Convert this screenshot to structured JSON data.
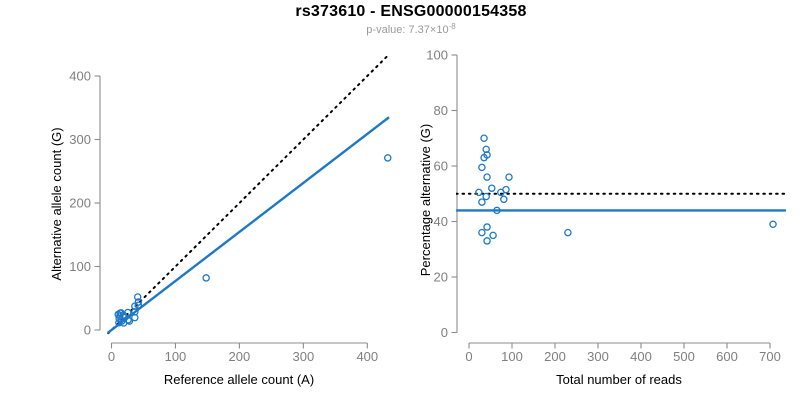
{
  "figure": {
    "title": "rs373610 - ENSG00000154358",
    "subtitle_prefix": "p-value: 7.37×10",
    "subtitle_exponent": "-8"
  },
  "colors": {
    "point_blue": "#1E78C8",
    "fit_blue": "#1E78C8",
    "dashed_black": "#000000",
    "axis_gray": "#8c8c8c",
    "tick_label_gray": "#7f7f7f",
    "subtitle_gray": "#9a9a9a"
  },
  "chart_data": [
    {
      "name": "allele-counts-scatter",
      "type": "scatter",
      "xlabel": "Reference allele count (A)",
      "ylabel": "Alternative allele count (G)",
      "xticks": [
        0,
        100,
        200,
        300,
        400
      ],
      "yticks": [
        0,
        100,
        200,
        300,
        400
      ],
      "xlim": [
        -18,
        450
      ],
      "ylim": [
        -18,
        450
      ],
      "grid": false,
      "points": [
        [
          10.5,
          24.5
        ],
        [
          13.5,
          26.5
        ],
        [
          15,
          27
        ],
        [
          13,
          22
        ],
        [
          12,
          18
        ],
        [
          18.5,
          23.5
        ],
        [
          41,
          52
        ],
        [
          25.5,
          27.5
        ],
        [
          11.5,
          11.5
        ],
        [
          20.5,
          19.5
        ],
        [
          36.5,
          37.5
        ],
        [
          42,
          44
        ],
        [
          16,
          14
        ],
        [
          42,
          39
        ],
        [
          36.5,
          28.5
        ],
        [
          26,
          16
        ],
        [
          19,
          11
        ],
        [
          36.5,
          19.5
        ],
        [
          28,
          14
        ],
        [
          148,
          82
        ],
        [
          432,
          271
        ]
      ],
      "lines": [
        {
          "name": "identity-line",
          "style": "dotted",
          "color": "#000000",
          "slope": 1,
          "intercept": 0,
          "x_range": [
            -5,
            433
          ]
        },
        {
          "name": "fit-line",
          "style": "solid",
          "color": "#1E78C8",
          "slope": 0.772,
          "intercept": 0,
          "x_range": [
            -6,
            434
          ]
        }
      ]
    },
    {
      "name": "percentage-scatter",
      "type": "scatter",
      "xlabel": "Total number of reads",
      "ylabel": "Percentage alternative (G)",
      "xticks": [
        0,
        100,
        200,
        300,
        400,
        500,
        600,
        700
      ],
      "yticks": [
        0,
        20,
        40,
        60,
        80,
        100
      ],
      "xlim": [
        -30,
        737
      ],
      "ylim": [
        -4.2,
        104.2
      ],
      "grid": false,
      "points": [
        [
          35,
          70
        ],
        [
          40,
          66
        ],
        [
          42,
          64
        ],
        [
          35,
          63
        ],
        [
          30,
          59.5
        ],
        [
          42,
          56
        ],
        [
          93,
          56
        ],
        [
          53,
          52
        ],
        [
          23,
          50.5
        ],
        [
          40,
          49
        ],
        [
          74,
          50.5
        ],
        [
          86,
          51.5
        ],
        [
          30,
          47
        ],
        [
          81,
          48
        ],
        [
          65,
          44
        ],
        [
          42,
          38
        ],
        [
          30,
          36
        ],
        [
          56,
          35
        ],
        [
          42,
          33
        ],
        [
          230,
          36
        ],
        [
          707,
          39
        ]
      ],
      "lines": [
        {
          "name": "null-line",
          "style": "dotted",
          "color": "#000000",
          "slope": 0,
          "intercept": 50,
          "x_range": [
            -30,
            748
          ]
        },
        {
          "name": "fit-line",
          "style": "solid",
          "color": "#1E78C8",
          "slope": 0,
          "intercept": 44,
          "x_range": [
            -30,
            737
          ]
        }
      ]
    }
  ]
}
